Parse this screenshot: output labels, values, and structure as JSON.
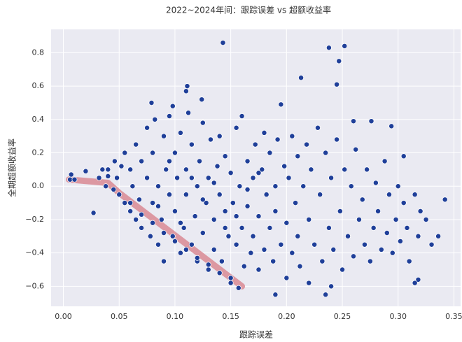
{
  "chart_data": {
    "type": "scatter",
    "title": "2022~2024年间：跟踪误差 vs 超额收益率",
    "x_label": "跟踪误差",
    "y_label": "全期超额收益率",
    "xlim": [
      -0.011,
      0.356
    ],
    "ylim": [
      -0.72,
      0.94
    ],
    "xticks": [
      {
        "value": 0,
        "label": "0.00"
      },
      {
        "value": 0.05,
        "label": "0.05"
      },
      {
        "value": 0.1,
        "label": "0.10"
      },
      {
        "value": 0.15,
        "label": "0.15"
      },
      {
        "value": 0.2,
        "label": "0.20"
      },
      {
        "value": 0.25,
        "label": "0.25"
      },
      {
        "value": 0.3,
        "label": "0.30"
      },
      {
        "value": 0.35,
        "label": "0.35"
      }
    ],
    "yticks": [
      {
        "value": -0.6,
        "label": "−0.6"
      },
      {
        "value": -0.4,
        "label": "−0.4"
      },
      {
        "value": -0.2,
        "label": "−0.2"
      },
      {
        "value": 0,
        "label": "0.0"
      },
      {
        "value": 0.2,
        "label": "0.2"
      },
      {
        "value": 0.4,
        "label": "0.4"
      },
      {
        "value": 0.6,
        "label": "0.6"
      },
      {
        "value": 0.8,
        "label": "0.8"
      }
    ],
    "grid": true,
    "series": [
      {
        "type": "line",
        "color": "#d98a94",
        "x": [
          0.005,
          0.04,
          0.05,
          0.16
        ],
        "values": [
          0.04,
          0.02,
          -0.04,
          -0.6
        ]
      },
      {
        "type": "scatter",
        "color": "#1f3f99",
        "x": [
          0.143,
          0.238,
          0.252,
          0.247,
          0.245,
          0.213,
          0.111,
          0.11,
          0.124,
          0.079,
          0.098,
          0.195,
          0.26,
          0.276,
          0.294,
          0.305,
          0.342,
          0.336,
          0.318,
          0.315,
          0.007,
          0.006,
          0.01,
          0.02,
          0.027,
          0.04,
          0.157,
          0.19,
          0.235,
          0.24,
          0.032,
          0.035,
          0.038,
          0.04,
          0.045,
          0.046,
          0.048,
          0.05,
          0.052,
          0.055,
          0.055,
          0.06,
          0.06,
          0.062,
          0.065,
          0.065,
          0.068,
          0.07,
          0.07,
          0.075,
          0.075,
          0.078,
          0.08,
          0.08,
          0.082,
          0.085,
          0.085,
          0.088,
          0.09,
          0.09,
          0.092,
          0.095,
          0.095,
          0.098,
          0.1,
          0.1,
          0.102,
          0.105,
          0.105,
          0.108,
          0.11,
          0.11,
          0.112,
          0.115,
          0.115,
          0.118,
          0.12,
          0.12,
          0.122,
          0.125,
          0.125,
          0.128,
          0.13,
          0.13,
          0.132,
          0.135,
          0.135,
          0.138,
          0.14,
          0.14,
          0.142,
          0.145,
          0.145,
          0.148,
          0.15,
          0.15,
          0.152,
          0.155,
          0.155,
          0.158,
          0.16,
          0.16,
          0.162,
          0.165,
          0.165,
          0.168,
          0.17,
          0.17,
          0.172,
          0.175,
          0.175,
          0.178,
          0.18,
          0.18,
          0.182,
          0.185,
          0.185,
          0.188,
          0.19,
          0.19,
          0.192,
          0.195,
          0.198,
          0.2,
          0.2,
          0.202,
          0.205,
          0.205,
          0.208,
          0.21,
          0.21,
          0.212,
          0.215,
          0.218,
          0.22,
          0.22,
          0.222,
          0.225,
          0.228,
          0.23,
          0.232,
          0.235,
          0.238,
          0.24,
          0.242,
          0.245,
          0.248,
          0.25,
          0.252,
          0.255,
          0.258,
          0.26,
          0.262,
          0.265,
          0.268,
          0.27,
          0.272,
          0.275,
          0.278,
          0.28,
          0.282,
          0.285,
          0.288,
          0.29,
          0.292,
          0.295,
          0.298,
          0.3,
          0.302,
          0.305,
          0.308,
          0.31,
          0.315,
          0.318,
          0.32,
          0.325,
          0.33,
          0.06,
          0.07,
          0.08,
          0.09,
          0.1,
          0.11,
          0.12,
          0.13,
          0.14,
          0.15,
          0.085,
          0.095,
          0.105,
          0.115,
          0.125,
          0.135,
          0.145,
          0.155,
          0.165,
          0.175
        ],
        "values": [
          0.86,
          0.83,
          0.84,
          0.75,
          0.61,
          0.65,
          0.6,
          0.57,
          0.52,
          0.5,
          0.48,
          0.49,
          0.39,
          0.39,
          0.36,
          0.18,
          -0.08,
          -0.3,
          -0.56,
          -0.58,
          0.07,
          0.04,
          0.04,
          0.09,
          -0.16,
          0.1,
          -0.61,
          -0.65,
          -0.65,
          -0.6,
          0.05,
          0.1,
          0.0,
          0.06,
          -0.02,
          0.15,
          0.05,
          -0.05,
          0.12,
          0.2,
          -0.1,
          0.1,
          -0.15,
          0.0,
          0.25,
          -0.2,
          -0.08,
          0.15,
          -0.25,
          0.05,
          0.35,
          -0.3,
          -0.1,
          0.2,
          0.4,
          0.0,
          -0.35,
          -0.2,
          0.3,
          -0.45,
          0.1,
          -0.05,
          0.42,
          -0.3,
          0.2,
          -0.15,
          0.05,
          -0.4,
          0.32,
          -0.25,
          0.1,
          -0.05,
          0.44,
          -0.35,
          0.25,
          -0.18,
          0.0,
          -0.45,
          0.15,
          -0.28,
          0.38,
          -0.1,
          0.05,
          -0.5,
          0.28,
          -0.2,
          -0.38,
          0.12,
          -0.05,
          0.3,
          -0.45,
          -0.15,
          0.18,
          -0.3,
          0.08,
          -0.55,
          -0.1,
          0.35,
          -0.35,
          0.0,
          -0.25,
          0.42,
          -0.48,
          0.15,
          -0.12,
          -0.4,
          0.05,
          -0.3,
          0.25,
          -0.18,
          -0.5,
          0.1,
          -0.38,
          0.32,
          -0.05,
          -0.25,
          0.2,
          -0.45,
          0.0,
          -0.15,
          0.28,
          -0.35,
          0.12,
          -0.22,
          -0.55,
          0.05,
          0.3,
          -0.4,
          -0.1,
          0.18,
          -0.3,
          -0.48,
          0.0,
          0.25,
          -0.2,
          -0.58,
          0.1,
          -0.35,
          0.35,
          -0.05,
          -0.45,
          0.2,
          -0.25,
          0.05,
          -0.38,
          0.28,
          -0.15,
          -0.5,
          0.1,
          -0.3,
          0.0,
          -0.42,
          0.22,
          -0.2,
          -0.08,
          -0.35,
          0.1,
          -0.45,
          -0.25,
          0.02,
          -0.15,
          -0.38,
          0.15,
          -0.28,
          -0.05,
          -0.4,
          -0.2,
          0.0,
          -0.33,
          -0.1,
          -0.25,
          -0.45,
          -0.05,
          -0.3,
          -0.15,
          -0.2,
          -0.35,
          -0.1,
          -0.17,
          -0.22,
          -0.28,
          -0.33,
          -0.38,
          -0.43,
          -0.47,
          -0.52,
          -0.58,
          -0.12,
          0.15,
          -0.22,
          0.05,
          -0.08,
          0.02,
          -0.25,
          -0.18,
          -0.02,
          0.08
        ]
      }
    ]
  }
}
